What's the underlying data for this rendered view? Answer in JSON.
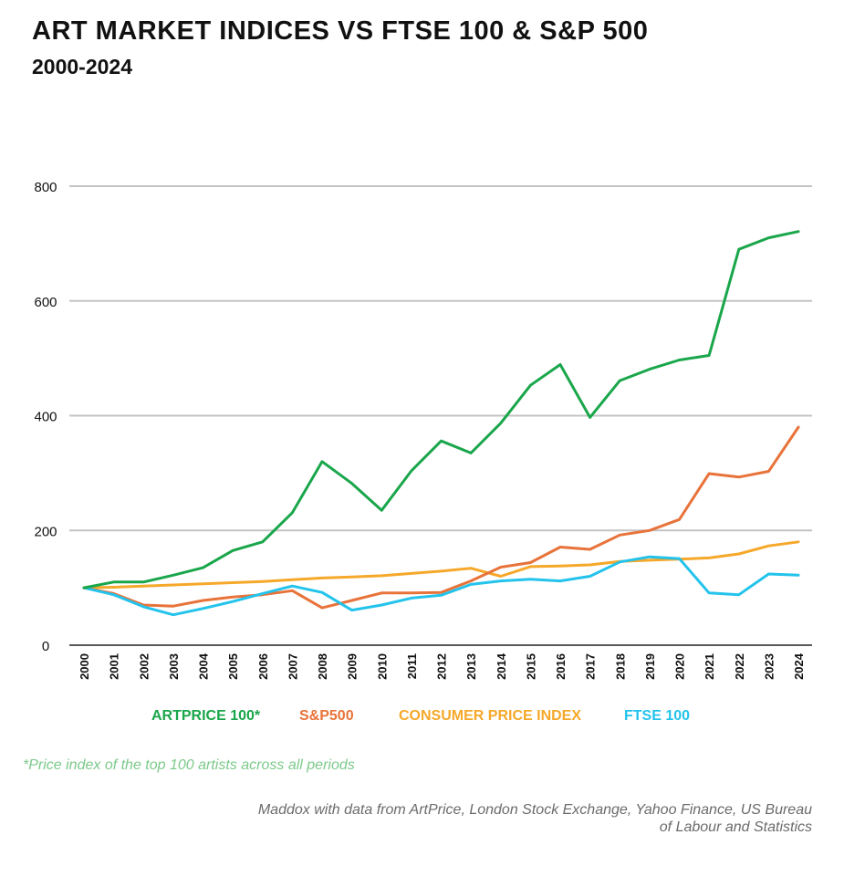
{
  "header": {
    "title": "ART MARKET INDICES VS FTSE 100 & S&P 500",
    "subtitle": "2000-2024"
  },
  "chart_data": {
    "type": "line",
    "title": "ART MARKET INDICES VS FTSE 100 & S&P 500",
    "subtitle": "2000-2024",
    "xlabel": "",
    "ylabel": "",
    "ylim": [
      0,
      800
    ],
    "yticks": [
      0,
      200,
      400,
      600,
      800
    ],
    "grid": true,
    "legend_position": "bottom",
    "categories": [
      "2000",
      "2001",
      "2002",
      "2003",
      "2004",
      "2005",
      "2006",
      "2007",
      "2008",
      "2009",
      "2010",
      "2011",
      "2012",
      "2013",
      "2014",
      "2015",
      "2016",
      "2017",
      "2018",
      "2019",
      "2020",
      "2021",
      "2022",
      "2023",
      "2024"
    ],
    "series": [
      {
        "name": "ARTPRICE 100*",
        "color": "#1aa64b",
        "values": [
          100,
          110,
          110,
          122,
          135,
          165,
          180,
          231,
          320,
          282,
          235,
          304,
          356,
          335,
          387,
          453,
          489,
          397,
          461,
          481,
          497,
          505,
          690,
          710,
          721
        ]
      },
      {
        "name": "S&P500",
        "color": "#e8733a",
        "values": [
          100,
          90,
          70,
          68,
          78,
          84,
          88,
          95,
          65,
          78,
          91,
          91,
          92,
          112,
          136,
          144,
          171,
          167,
          192,
          200,
          219,
          299,
          293,
          303,
          380
        ]
      },
      {
        "name": "CONSUMER PRICE INDEX",
        "color": "#f5a82a",
        "values": [
          100,
          101,
          103,
          105,
          107,
          109,
          111,
          114,
          117,
          119,
          121,
          125,
          129,
          134,
          120,
          137,
          138,
          140,
          146,
          148,
          150,
          152,
          159,
          173,
          180
        ]
      },
      {
        "name": "FTSE 100",
        "color": "#23c3ec",
        "values": [
          100,
          88,
          67,
          53,
          64,
          76,
          90,
          103,
          92,
          61,
          70,
          82,
          87,
          106,
          112,
          115,
          112,
          120,
          145,
          154,
          151,
          91,
          88,
          124,
          122
        ]
      }
    ]
  },
  "footnote": "*Price index of the top 100 artists across all periods",
  "source_lines": [
    "Maddox with data from ArtPrice, London Stock Exchange, Yahoo Finance, US Bureau",
    "of Labour and Statistics"
  ]
}
